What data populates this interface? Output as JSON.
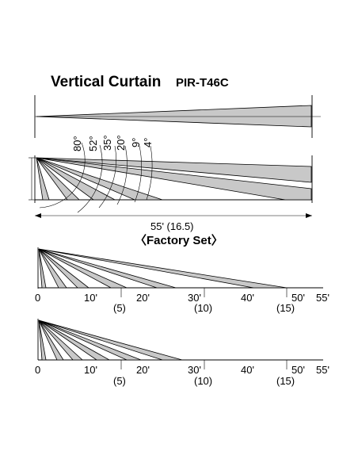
{
  "header": {
    "title": "Vertical Curtain",
    "model": "PIR-T46C"
  },
  "side_view": {
    "angles": [
      "80°",
      "52°",
      "35°",
      "20°",
      "9°",
      "4°"
    ],
    "distance": "55' (16.5)"
  },
  "factory_set": {
    "heading": "〈Factory Set〉",
    "ticks_ft": [
      "0",
      "10'",
      "20'",
      "30'",
      "40'",
      "50'",
      "55'"
    ],
    "ticks_m": [
      "(5)",
      "(10)",
      "(15)"
    ]
  },
  "second_view": {
    "ticks_ft": [
      "0",
      "10'",
      "20'",
      "30'",
      "40'",
      "50'",
      "55'"
    ],
    "ticks_m": [
      "(5)",
      "(10)",
      "(15)"
    ]
  }
}
